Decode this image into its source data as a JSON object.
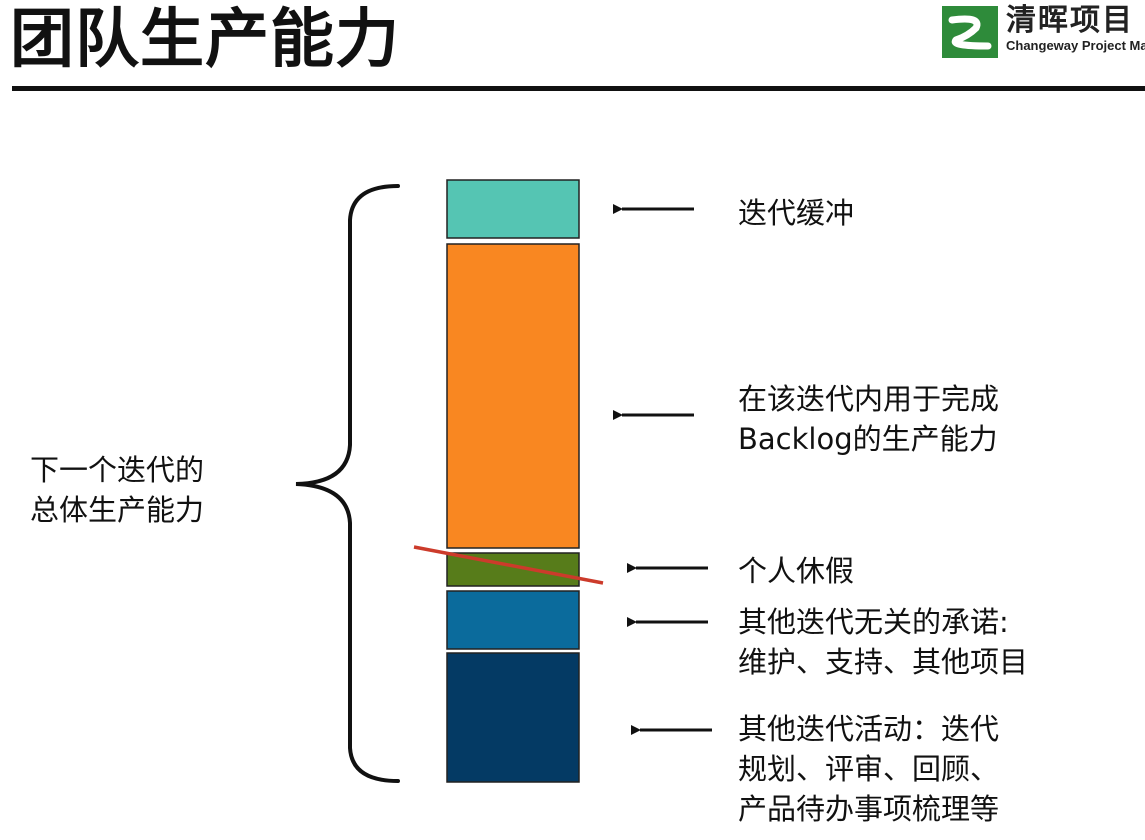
{
  "header": {
    "title": "团队生产能力",
    "logo": {
      "cn": "清晖项目",
      "en": "Changeway Project Ma"
    }
  },
  "diagram": {
    "total_label": [
      "下一个迭代的",
      "总体生产能力"
    ],
    "segments": [
      {
        "id": "buffer",
        "color": "#55c5b3",
        "label": [
          "迭代缓冲"
        ]
      },
      {
        "id": "backlog",
        "color": "#f98721",
        "label": [
          "在该迭代内用于完成",
          "Backlog的生产能力"
        ]
      },
      {
        "id": "vacation",
        "color": "#577c1a",
        "label": [
          "个人休假"
        ]
      },
      {
        "id": "commitments",
        "color": "#0b6b9c",
        "label": [
          "其他迭代无关的承诺:",
          "维护、支持、其他项目"
        ]
      },
      {
        "id": "activities",
        "color": "#043a64",
        "label": [
          "其他迭代活动：迭代",
          "规划、评审、回顾、",
          "产品待办事项梳理等"
        ]
      }
    ],
    "strike_color": "#cc3b2b"
  }
}
